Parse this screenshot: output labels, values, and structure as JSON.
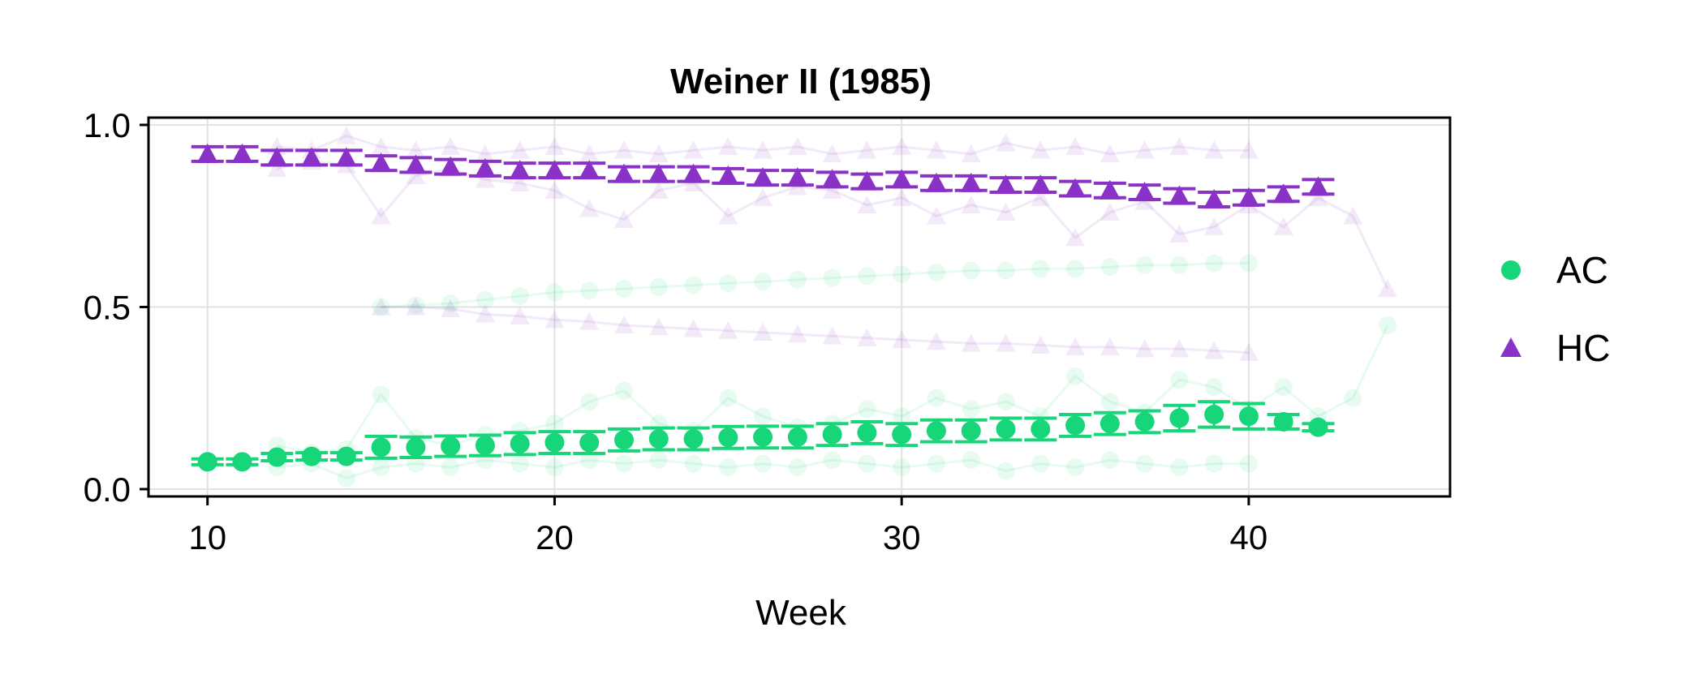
{
  "chart_data": {
    "type": "line",
    "title": "Weiner II (1985)",
    "xlabel": "Week",
    "ylabel": "",
    "xlim": [
      8.3,
      45.8
    ],
    "ylim": [
      -0.02,
      1.02
    ],
    "xticks": [
      10,
      20,
      30,
      40
    ],
    "yticks": [
      0.0,
      0.5,
      1.0
    ],
    "xtick_labels": [
      "10",
      "20",
      "30",
      "40"
    ],
    "ytick_labels": [
      "0.0",
      "0.5",
      "1.0"
    ],
    "grid": true,
    "legend_position": "right",
    "colors": {
      "AC": "#17d67a",
      "HC": "#8a32c8"
    },
    "series": [
      {
        "name": "AC",
        "marker": "circle",
        "x": [
          10,
          11,
          12,
          13,
          14,
          15,
          16,
          17,
          18,
          19,
          20,
          21,
          22,
          23,
          24,
          25,
          26,
          27,
          28,
          29,
          30,
          31,
          32,
          33,
          34,
          35,
          36,
          37,
          38,
          39,
          40,
          41,
          42
        ],
        "y": [
          0.075,
          0.075,
          0.088,
          0.09,
          0.09,
          0.115,
          0.115,
          0.118,
          0.12,
          0.125,
          0.128,
          0.128,
          0.135,
          0.138,
          0.138,
          0.142,
          0.143,
          0.143,
          0.15,
          0.155,
          0.15,
          0.16,
          0.16,
          0.165,
          0.165,
          0.175,
          0.18,
          0.185,
          0.195,
          0.205,
          0.2,
          0.185,
          0.17
        ],
        "err": [
          0.008,
          0.008,
          0.01,
          0.01,
          0.01,
          0.03,
          0.028,
          0.028,
          0.028,
          0.03,
          0.03,
          0.03,
          0.03,
          0.03,
          0.03,
          0.03,
          0.03,
          0.03,
          0.03,
          0.03,
          0.03,
          0.03,
          0.03,
          0.03,
          0.03,
          0.03,
          0.03,
          0.03,
          0.035,
          0.035,
          0.035,
          0.02,
          0.01
        ]
      },
      {
        "name": "HC",
        "marker": "triangle",
        "x": [
          10,
          11,
          12,
          13,
          14,
          15,
          16,
          17,
          18,
          19,
          20,
          21,
          22,
          23,
          24,
          25,
          26,
          27,
          28,
          29,
          30,
          31,
          32,
          33,
          34,
          35,
          36,
          37,
          38,
          39,
          40,
          41,
          42
        ],
        "y": [
          0.92,
          0.92,
          0.91,
          0.91,
          0.91,
          0.895,
          0.89,
          0.885,
          0.88,
          0.875,
          0.875,
          0.875,
          0.865,
          0.865,
          0.865,
          0.86,
          0.855,
          0.855,
          0.85,
          0.845,
          0.85,
          0.84,
          0.84,
          0.835,
          0.835,
          0.825,
          0.82,
          0.815,
          0.805,
          0.795,
          0.8,
          0.81,
          0.83
        ]
      }
    ],
    "background_lines": [
      {
        "series": "AC",
        "x": [
          15,
          16,
          17,
          18,
          19,
          20,
          21,
          22,
          23,
          24,
          25,
          26,
          27,
          28,
          29,
          30,
          31,
          32,
          33,
          34,
          35,
          36,
          37,
          38,
          39,
          40
        ],
        "y": [
          0.5,
          0.505,
          0.51,
          0.52,
          0.53,
          0.54,
          0.545,
          0.55,
          0.555,
          0.56,
          0.565,
          0.57,
          0.575,
          0.58,
          0.585,
          0.59,
          0.595,
          0.6,
          0.6,
          0.605,
          0.605,
          0.61,
          0.615,
          0.615,
          0.62,
          0.62
        ]
      },
      {
        "series": "AC",
        "x": [
          12,
          13,
          14,
          15,
          16,
          17,
          18,
          19,
          20,
          21,
          22,
          23,
          24,
          25,
          26,
          27,
          28,
          29,
          30,
          31,
          32,
          33,
          34,
          35,
          36,
          37,
          38,
          39,
          40,
          41,
          42,
          43,
          44
        ],
        "y": [
          0.12,
          0.1,
          0.11,
          0.26,
          0.14,
          0.12,
          0.15,
          0.16,
          0.18,
          0.24,
          0.27,
          0.18,
          0.16,
          0.25,
          0.2,
          0.17,
          0.18,
          0.22,
          0.2,
          0.25,
          0.22,
          0.24,
          0.2,
          0.31,
          0.24,
          0.21,
          0.3,
          0.28,
          0.22,
          0.28,
          0.2,
          0.25,
          0.45
        ]
      },
      {
        "series": "AC",
        "x": [
          12,
          13,
          14,
          15,
          16,
          17,
          18,
          19,
          20,
          21,
          22,
          23,
          24,
          25,
          26,
          27,
          28,
          29,
          30,
          31,
          32,
          33,
          34,
          35,
          36,
          37,
          38,
          39,
          40
        ],
        "y": [
          0.06,
          0.07,
          0.03,
          0.06,
          0.07,
          0.06,
          0.08,
          0.07,
          0.06,
          0.08,
          0.07,
          0.08,
          0.07,
          0.06,
          0.07,
          0.06,
          0.08,
          0.07,
          0.06,
          0.07,
          0.08,
          0.05,
          0.07,
          0.06,
          0.08,
          0.07,
          0.06,
          0.07,
          0.07
        ]
      },
      {
        "series": "HC",
        "x": [
          15,
          16,
          17,
          18,
          19,
          20,
          21,
          22,
          23,
          24,
          25,
          26,
          27,
          28,
          29,
          30,
          31,
          32,
          33,
          34,
          35,
          36,
          37,
          38,
          39,
          40
        ],
        "y": [
          0.5,
          0.5,
          0.495,
          0.48,
          0.475,
          0.465,
          0.46,
          0.45,
          0.445,
          0.44,
          0.435,
          0.43,
          0.425,
          0.42,
          0.415,
          0.41,
          0.405,
          0.4,
          0.4,
          0.395,
          0.39,
          0.39,
          0.385,
          0.385,
          0.38,
          0.375
        ]
      },
      {
        "series": "HC",
        "x": [
          12,
          13,
          14,
          15,
          16,
          17,
          18,
          19,
          20,
          21,
          22,
          23,
          24,
          25,
          26,
          27,
          28,
          29,
          30,
          31,
          32,
          33,
          34,
          35,
          36,
          37,
          38,
          39,
          40,
          41,
          42,
          43,
          44
        ],
        "y": [
          0.88,
          0.9,
          0.89,
          0.75,
          0.86,
          0.88,
          0.85,
          0.84,
          0.82,
          0.77,
          0.74,
          0.82,
          0.84,
          0.75,
          0.8,
          0.83,
          0.82,
          0.78,
          0.8,
          0.75,
          0.78,
          0.76,
          0.8,
          0.69,
          0.76,
          0.79,
          0.7,
          0.72,
          0.78,
          0.72,
          0.8,
          0.75,
          0.55
        ]
      },
      {
        "series": "HC",
        "x": [
          12,
          13,
          14,
          15,
          16,
          17,
          18,
          19,
          20,
          21,
          22,
          23,
          24,
          25,
          26,
          27,
          28,
          29,
          30,
          31,
          32,
          33,
          34,
          35,
          36,
          37,
          38,
          39,
          40
        ],
        "y": [
          0.94,
          0.93,
          0.97,
          0.94,
          0.93,
          0.94,
          0.92,
          0.93,
          0.94,
          0.92,
          0.93,
          0.92,
          0.93,
          0.94,
          0.93,
          0.94,
          0.92,
          0.93,
          0.94,
          0.93,
          0.92,
          0.95,
          0.93,
          0.94,
          0.92,
          0.93,
          0.94,
          0.93,
          0.93
        ]
      }
    ]
  }
}
